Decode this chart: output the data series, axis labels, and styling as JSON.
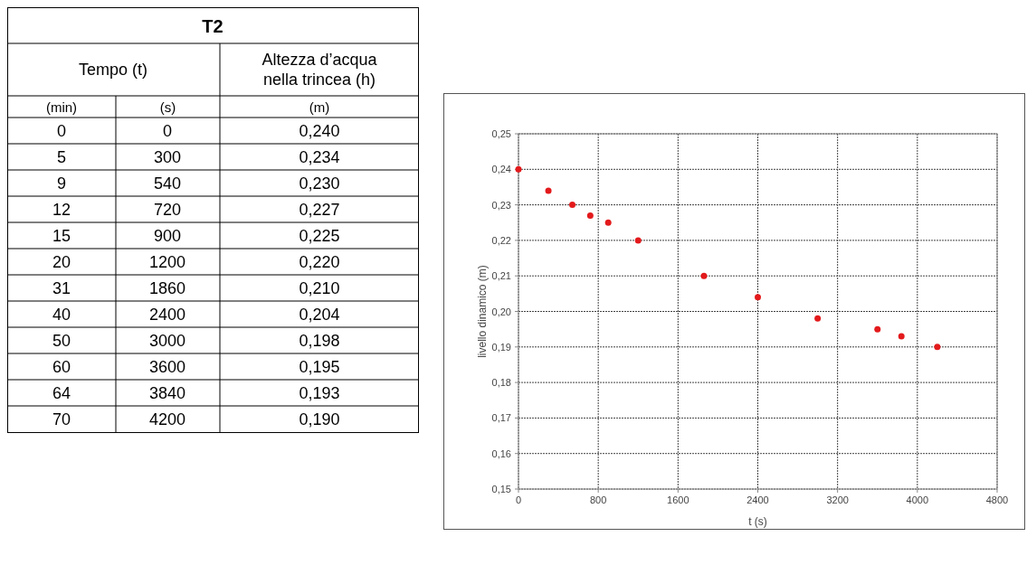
{
  "chart_data": [
    {
      "type": "other",
      "title": "T2",
      "annotations": [
        "Tempo (t)",
        "Altezza d’acqua nella trincea (h)",
        "(min)",
        "(s)",
        "(m)",
        "0",
        "300",
        "540",
        "720",
        "900",
        "1200",
        "1860",
        "2400",
        "3000",
        "3600",
        "3840",
        "4200"
      ],
      "categories": [
        "0",
        "5",
        "9",
        "12",
        "15",
        "20",
        "31",
        "40",
        "50",
        "60",
        "64",
        "70"
      ]
    },
    {
      "type": "scatter",
      "xlabel": "t (s)",
      "ylabel": "livello dinamico (m)",
      "grid": true,
      "marker": "circle",
      "x": [
        0,
        300,
        540,
        720,
        900,
        1200,
        1860,
        2400,
        3000,
        3600,
        3840,
        4200
      ],
      "series": [
        {
          "color": "#e31a1c",
          "values": [
            0.24,
            0.234,
            0.23,
            0.227,
            0.225,
            0.22,
            0.21,
            0.204,
            0.198,
            0.195,
            0.193,
            0.19
          ],
          "value_labels": [
            "0,240",
            "0,234",
            "0,230",
            "0,227",
            "0,225",
            "0,220",
            "0,210",
            "0,204",
            "0,198",
            "0,195",
            "0,193",
            "0,190"
          ]
        }
      ],
      "xlim": [
        0,
        4800
      ],
      "xticks": [
        0,
        800,
        1600,
        2400,
        3200,
        4000,
        4800
      ],
      "ylim": [
        0.15,
        0.25
      ],
      "yticks": [
        {
          "value": 0.15,
          "label": "0,15"
        },
        {
          "value": 0.16,
          "label": "0,16"
        },
        {
          "value": 0.17,
          "label": "0,17"
        },
        {
          "value": 0.18,
          "label": "0,18"
        },
        {
          "value": 0.19,
          "label": "0,19"
        },
        {
          "value": 0.2,
          "label": "0,20"
        },
        {
          "value": 0.21,
          "label": "0,21"
        },
        {
          "value": 0.22,
          "label": "0,22"
        },
        {
          "value": 0.23,
          "label": "0,23"
        },
        {
          "value": 0.24,
          "label": "0,24"
        },
        {
          "value": 0.25,
          "label": "0,25"
        }
      ]
    }
  ]
}
